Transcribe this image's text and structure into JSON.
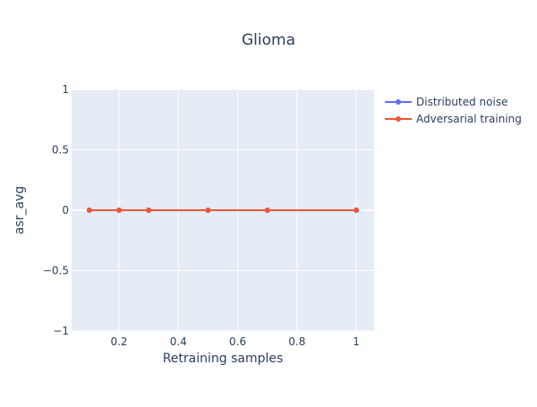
{
  "chart_data": {
    "type": "line",
    "title": "Glioma",
    "xlabel": "Retraining samples",
    "ylabel": "asr_avg",
    "xlim": [
      0.04,
      1.06
    ],
    "ylim": [
      -1,
      1
    ],
    "x_ticks": [
      0.2,
      0.4,
      0.6,
      0.8,
      1
    ],
    "x_tick_labels": [
      "0.2",
      "0.4",
      "0.6",
      "0.8",
      "1"
    ],
    "y_ticks": [
      1,
      0.5,
      0,
      -0.5,
      -1
    ],
    "y_tick_labels": [
      "1",
      "0.5",
      "0",
      "−0.5",
      "−1"
    ],
    "grid": true,
    "legend_position": "top-right",
    "series": [
      {
        "name": "Distributed noise",
        "color": "#636efa",
        "x": [
          0.1,
          0.2,
          0.3,
          0.5,
          0.7,
          1.0
        ],
        "y": [
          0,
          0,
          0,
          0,
          0,
          0
        ]
      },
      {
        "name": "Adversarial training",
        "color": "#ef553b",
        "x": [
          0.1,
          0.2,
          0.3,
          0.5,
          0.7,
          1.0
        ],
        "y": [
          0,
          0,
          0,
          0,
          0,
          0
        ]
      }
    ]
  }
}
